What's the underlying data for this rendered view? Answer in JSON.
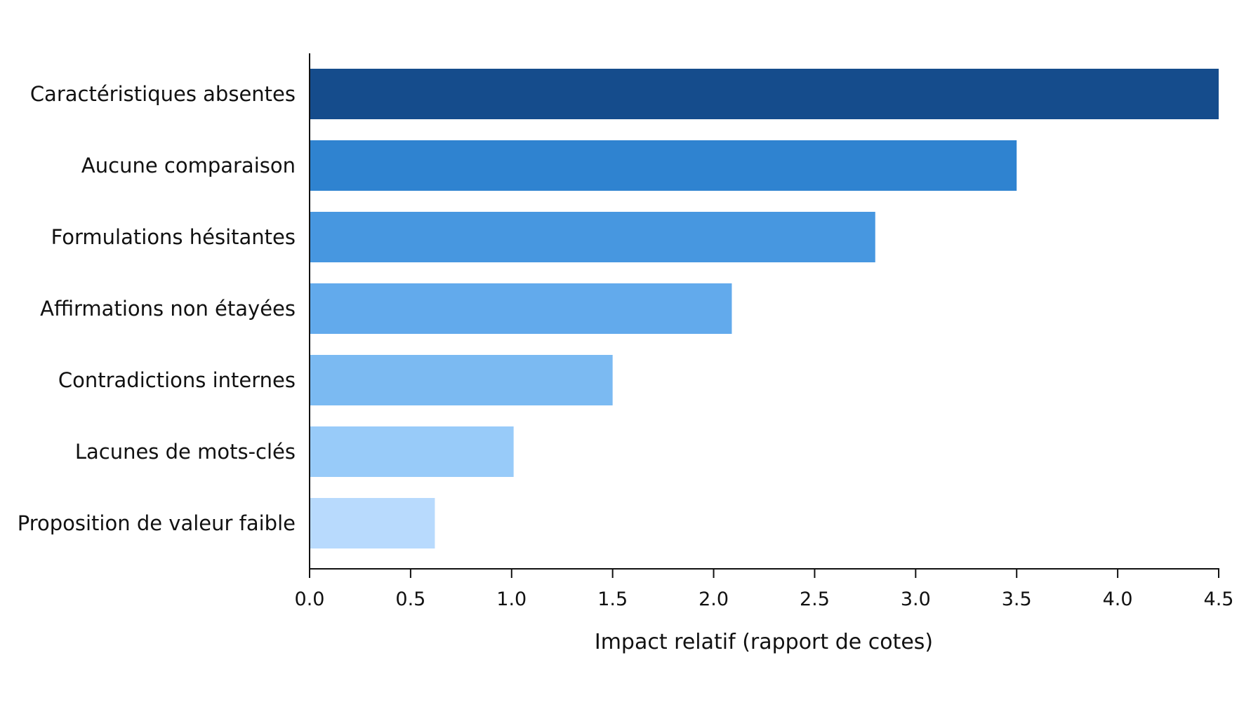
{
  "chart_data": {
    "type": "bar",
    "orientation": "horizontal",
    "categories": [
      "Caractéristiques absentes",
      "Aucune comparaison",
      "Formulations hésitantes",
      "Affirmations non étayées",
      "Contradictions internes",
      "Lacunes de mots-clés",
      "Proposition de valeur faible"
    ],
    "values": [
      4.5,
      3.5,
      2.8,
      2.09,
      1.5,
      1.01,
      0.62
    ],
    "colors": [
      "#154c8c",
      "#2f83d0",
      "#4797e0",
      "#62aaec",
      "#7bbaf2",
      "#98cbf9",
      "#b8dafd"
    ],
    "xlabel": "Impact relatif (rapport de cotes)",
    "ylabel": "",
    "title": "",
    "xlim": [
      0,
      4.5
    ],
    "xticks": [
      "0.0",
      "0.5",
      "1.0",
      "1.5",
      "2.0",
      "2.5",
      "3.0",
      "3.5",
      "4.0",
      "4.5"
    ],
    "grid": false,
    "legend": "none"
  }
}
